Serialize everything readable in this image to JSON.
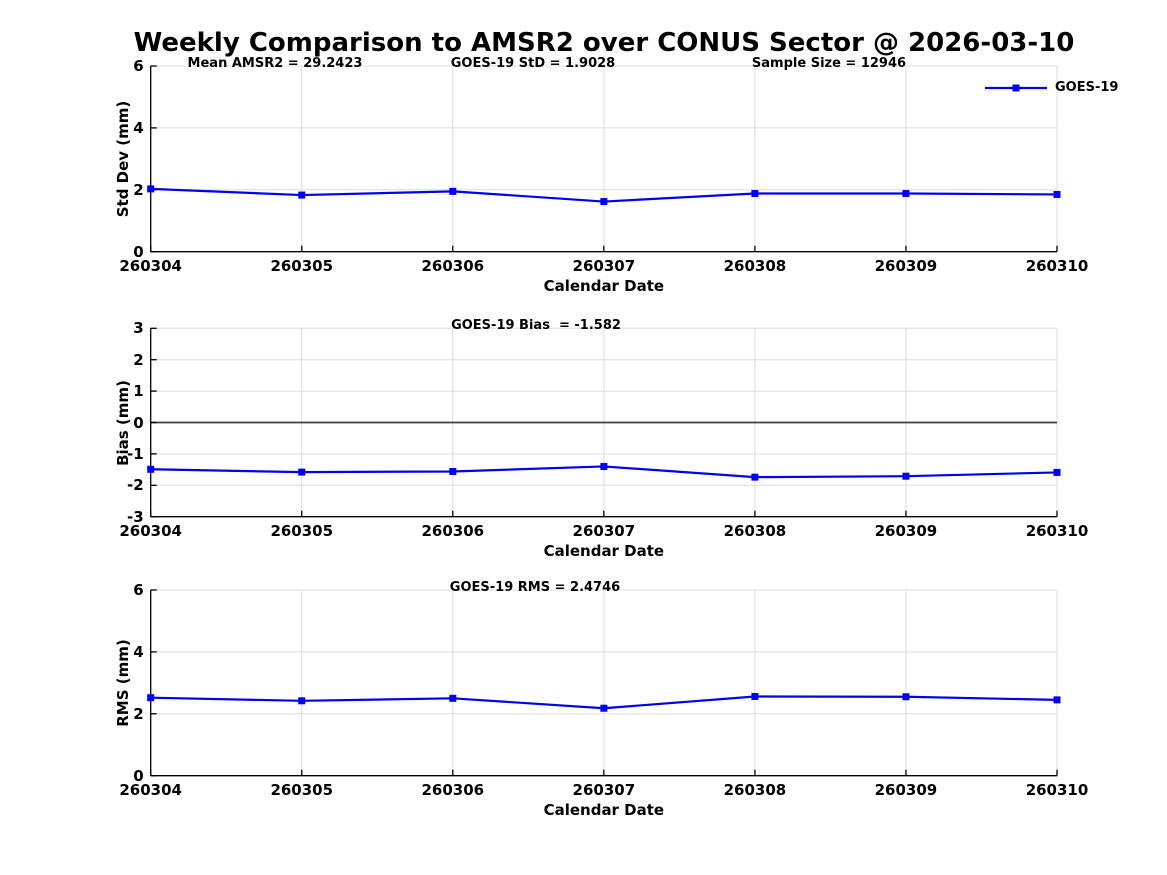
{
  "chart_data": {
    "type": "line",
    "title": "Weekly Comparison to AMSR2 over CONUS Sector @ 2026-03-10",
    "xlabel": "Calendar Date",
    "categories": [
      "260304",
      "260305",
      "260306",
      "260307",
      "260308",
      "260309",
      "260310"
    ],
    "legend": {
      "label": "GOES-19",
      "position": "top-right",
      "marker": "square"
    },
    "colors": {
      "line": "#0000EE",
      "grid": "#DCDCDC",
      "axis": "#000000",
      "zero_line": "#3C3C3C",
      "background": "#FFFFFF"
    },
    "subplots": [
      {
        "name": "std-dev",
        "ylabel": "Std Dev (mm)",
        "ylim": [
          0,
          6
        ],
        "yticks": [
          0,
          2,
          4,
          6
        ],
        "grid": true,
        "annotations": [
          "Mean AMSR2 = 29.2423",
          "GOES-19 StD = 1.9028",
          "Sample Size = 12946"
        ],
        "series": [
          {
            "name": "GOES-19",
            "marker": "square",
            "values": [
              2.03,
              1.83,
              1.95,
              1.62,
              1.88,
              1.88,
              1.85
            ]
          }
        ]
      },
      {
        "name": "bias",
        "ylabel": "Bias (mm)",
        "ylim": [
          -3,
          3
        ],
        "yticks": [
          -3,
          -2,
          -1,
          0,
          1,
          2,
          3
        ],
        "grid": true,
        "zero_line": true,
        "annotations": [
          "GOES-19 Bias  = -1.582"
        ],
        "series": [
          {
            "name": "GOES-19",
            "marker": "square",
            "values": [
              -1.49,
              -1.58,
              -1.56,
              -1.4,
              -1.74,
              -1.71,
              -1.59
            ]
          }
        ]
      },
      {
        "name": "rms",
        "ylabel": "RMS (mm)",
        "ylim": [
          0,
          6
        ],
        "yticks": [
          0,
          2,
          4,
          6
        ],
        "grid": true,
        "annotations": [
          "GOES-19 RMS = 2.4746"
        ],
        "series": [
          {
            "name": "GOES-19",
            "marker": "square",
            "values": [
              2.52,
              2.42,
              2.5,
              2.18,
              2.56,
              2.55,
              2.45
            ]
          }
        ]
      }
    ]
  }
}
